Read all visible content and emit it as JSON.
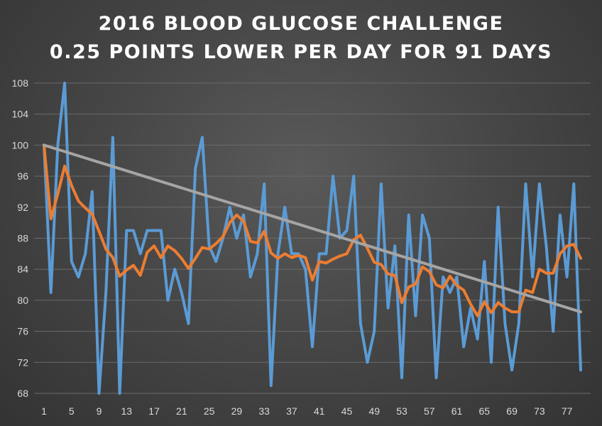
{
  "chart_data": {
    "type": "line",
    "title": "2016 BLOOD GLUCOSE CHALLENGE",
    "subtitle": "0.25 POINTS LOWER PER DAY FOR 91 DAYS",
    "xlabel": "",
    "ylabel": "",
    "ylim": [
      68,
      108
    ],
    "xlim": [
      1,
      79
    ],
    "yticks": [
      68,
      72,
      76,
      80,
      84,
      88,
      92,
      96,
      100,
      104,
      108
    ],
    "xticks": [
      1,
      5,
      9,
      13,
      17,
      21,
      25,
      29,
      33,
      37,
      41,
      45,
      49,
      53,
      57,
      61,
      65,
      69,
      73,
      77
    ],
    "grid": true,
    "legend": "none",
    "colors": {
      "daily": "#5b9bd5",
      "average": "#ed7d31",
      "target": "#a5a5a5"
    },
    "x": [
      1,
      2,
      3,
      4,
      5,
      6,
      7,
      8,
      9,
      10,
      11,
      12,
      13,
      14,
      15,
      16,
      17,
      18,
      19,
      20,
      21,
      22,
      23,
      24,
      25,
      26,
      27,
      28,
      29,
      30,
      31,
      32,
      33,
      34,
      35,
      36,
      37,
      38,
      39,
      40,
      41,
      42,
      43,
      44,
      45,
      46,
      47,
      48,
      49,
      50,
      51,
      52,
      53,
      54,
      55,
      56,
      57,
      58,
      59,
      60,
      61,
      62,
      63,
      64,
      65,
      66,
      67,
      68,
      69,
      70,
      71,
      72,
      73,
      74,
      75,
      76,
      77,
      78,
      79
    ],
    "series": [
      {
        "values": [
          100,
          81,
          100,
          108,
          85,
          83,
          86,
          94,
          68,
          81,
          101,
          68,
          89,
          89,
          86,
          89,
          89,
          89,
          80,
          84,
          81,
          77,
          97,
          101,
          87,
          85,
          88,
          92,
          88,
          91,
          83,
          86,
          95,
          69,
          86,
          92,
          86,
          86,
          84,
          74,
          86,
          86,
          96,
          88,
          89,
          96,
          77,
          72,
          76,
          95,
          79,
          87,
          70,
          91,
          78,
          91,
          88,
          70,
          83,
          81,
          83,
          74,
          79,
          75,
          85,
          72,
          92,
          77,
          71,
          77,
          95,
          83,
          95,
          87,
          76,
          91,
          83,
          95,
          71
        ]
      },
      {
        "values": [
          100,
          90.5,
          93.7,
          97.3,
          94.8,
          92.8,
          91.9,
          91.1,
          88.9,
          86.6,
          85.5,
          83.1,
          83.9,
          84.5,
          83.2,
          86.2,
          87.0,
          85.5,
          87.0,
          86.4,
          85.4,
          84.1,
          85.4,
          86.8,
          86.6,
          87.3,
          88.2,
          90.0,
          91.0,
          90.2,
          87.6,
          87.4,
          88.9,
          86.1,
          85.4,
          86.0,
          85.5,
          85.8,
          85.5,
          82.6,
          85.0,
          84.8,
          85.3,
          85.7,
          86.0,
          87.8,
          88.4,
          86.7,
          84.9,
          84.6,
          83.4,
          83.2,
          79.7,
          81.7,
          82.1,
          84.3,
          83.7,
          82.0,
          81.6,
          83.1,
          81.9,
          81.3,
          79.5,
          78.0,
          79.8,
          78.4,
          79.7,
          79.0,
          78.5,
          78.5,
          81.3,
          81.0,
          84.0,
          83.5,
          83.5,
          86.0,
          87.0,
          87.2,
          85.4
        ]
      },
      {
        "values": [
          100,
          78.5
        ],
        "x": [
          1,
          79
        ]
      }
    ]
  }
}
